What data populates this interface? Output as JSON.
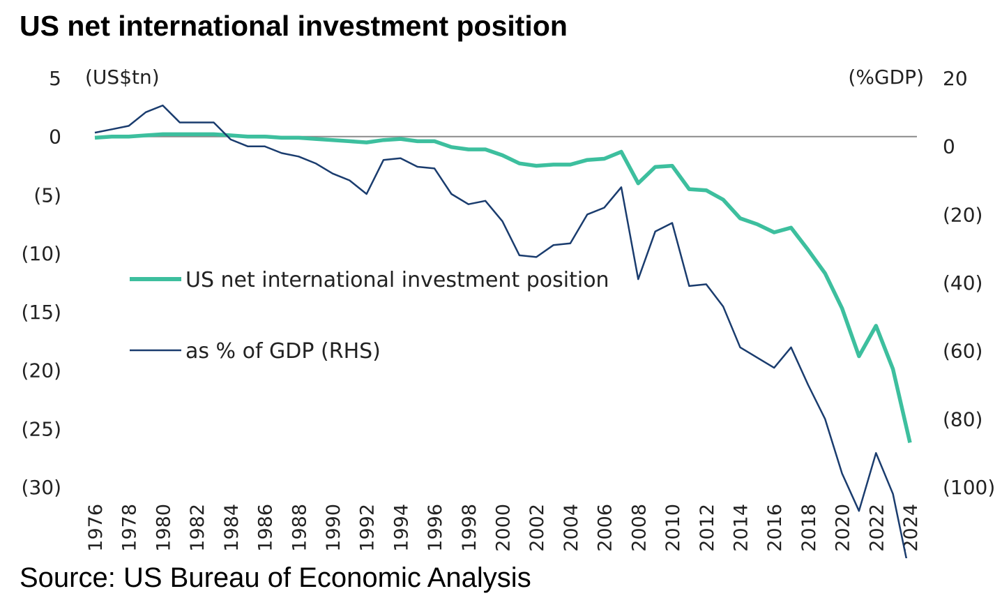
{
  "title": "US net international investment position",
  "source": "Source: US Bureau of Economic Analysis",
  "chart_data": {
    "type": "line",
    "left_unit": "(US$tn)",
    "right_unit": "(%GDP)",
    "left_ticks": [
      "5",
      "0",
      "(5)",
      "(10)",
      "(15)",
      "(20)",
      "(25)",
      "(30)"
    ],
    "left_tick_values": [
      5,
      0,
      -5,
      -10,
      -15,
      -20,
      -25,
      -30
    ],
    "right_ticks": [
      "20",
      "0",
      "(20)",
      "(40)",
      "(60)",
      "(80)",
      "(100)"
    ],
    "right_tick_values": [
      20,
      0,
      -20,
      -40,
      -60,
      -80,
      -100
    ],
    "ylim_left": [
      -30,
      5
    ],
    "ylim_right": [
      -100,
      20
    ],
    "x_labels": [
      "1976",
      "1978",
      "1980",
      "1982",
      "1984",
      "1986",
      "1988",
      "1990",
      "1992",
      "1994",
      "1996",
      "1998",
      "2000",
      "2002",
      "2004",
      "2006",
      "2008",
      "2010",
      "2012",
      "2014",
      "2016",
      "2018",
      "2020",
      "2022",
      "2024"
    ],
    "x": [
      1976,
      1977,
      1978,
      1979,
      1980,
      1981,
      1982,
      1983,
      1984,
      1985,
      1986,
      1987,
      1988,
      1989,
      1990,
      1991,
      1992,
      1993,
      1994,
      1995,
      1996,
      1997,
      1998,
      1999,
      2000,
      2001,
      2002,
      2003,
      2004,
      2005,
      2006,
      2007,
      2008,
      2009,
      2010,
      2011,
      2012,
      2013,
      2014,
      2015,
      2016,
      2017,
      2018,
      2019,
      2020,
      2021,
      2022,
      2023,
      2024
    ],
    "series": [
      {
        "name": "US net international investment position",
        "axis": "left",
        "color": "#3dbf9e",
        "values": [
          -0.1,
          0.0,
          0.0,
          0.1,
          0.2,
          0.2,
          0.2,
          0.2,
          0.1,
          0.0,
          0.0,
          -0.1,
          -0.1,
          -0.2,
          -0.3,
          -0.4,
          -0.5,
          -0.3,
          -0.2,
          -0.4,
          -0.4,
          -0.9,
          -1.1,
          -1.1,
          -1.6,
          -2.3,
          -2.5,
          -2.4,
          -2.4,
          -2.0,
          -1.9,
          -1.3,
          -4.0,
          -2.6,
          -2.5,
          -4.5,
          -4.6,
          -5.4,
          -7.0,
          -7.5,
          -8.2,
          -7.8,
          -9.7,
          -11.7,
          -14.7,
          -18.8,
          -16.2,
          -19.9,
          -26.2
        ]
      },
      {
        "name": "as % of GDP (RHS)",
        "axis": "right",
        "color": "#1a3c6e",
        "values": [
          4,
          5,
          6,
          10,
          12,
          7,
          7,
          7,
          2,
          0,
          0,
          -2,
          -3,
          -5,
          -8,
          -10,
          -14,
          -4,
          -3.5,
          -6,
          -6.5,
          -14,
          -17,
          -16,
          -22,
          -32,
          -32.5,
          -29,
          -28.5,
          -20,
          -18,
          -12,
          -39,
          -25,
          -22.5,
          -41,
          -40.5,
          -47,
          -59,
          -62,
          -65,
          -59,
          -70,
          -80,
          -96,
          -107,
          -90,
          -102,
          -126
        ]
      }
    ]
  }
}
